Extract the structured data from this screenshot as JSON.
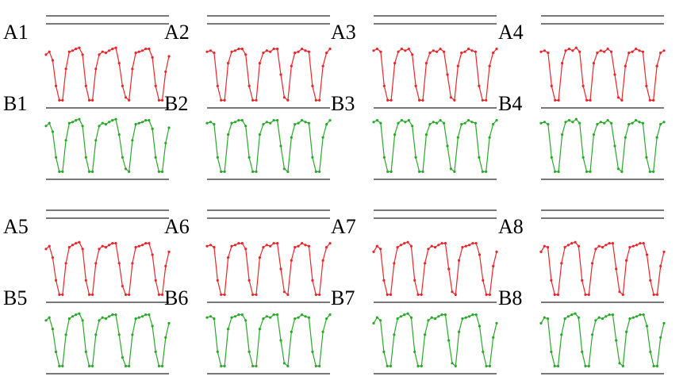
{
  "colors": {
    "red_series": "#e8262b",
    "green_series": "#2aa82a",
    "rule_line": "#777777"
  },
  "chart_data": [
    {
      "type": "line",
      "label": "A1",
      "series": [
        {
          "color": "red",
          "values": [
            0.85,
            0.9,
            0.75,
            0.3,
            0.05,
            0.05,
            0.6,
            0.9,
            0.92,
            0.95,
            0.97,
            0.85,
            0.3,
            0.05,
            0.05,
            0.6,
            0.85,
            0.9,
            0.88,
            0.92,
            0.95,
            0.97,
            0.7,
            0.3,
            0.1,
            0.05,
            0.6,
            0.88,
            0.9,
            0.92,
            0.95,
            0.95,
            0.8,
            0.3,
            0.05,
            0.05,
            0.55,
            0.82
          ]
        }
      ]
    },
    {
      "type": "line",
      "label": "A2",
      "series": [
        {
          "color": "red",
          "values": [
            0.9,
            0.92,
            0.88,
            0.3,
            0.05,
            0.05,
            0.7,
            0.9,
            0.92,
            0.95,
            0.95,
            0.85,
            0.3,
            0.05,
            0.05,
            0.7,
            0.88,
            0.92,
            0.9,
            0.95,
            0.95,
            0.5,
            0.1,
            0.05,
            0.65,
            0.88,
            0.9,
            0.95,
            0.92,
            0.9,
            0.3,
            0.05,
            0.05,
            0.65,
            0.88,
            0.95
          ]
        }
      ]
    },
    {
      "type": "line",
      "label": "A3",
      "series": [
        {
          "color": "red",
          "values": [
            0.92,
            0.95,
            0.9,
            0.3,
            0.05,
            0.05,
            0.7,
            0.9,
            0.95,
            0.92,
            0.95,
            0.85,
            0.3,
            0.05,
            0.05,
            0.7,
            0.88,
            0.92,
            0.9,
            0.95,
            0.9,
            0.5,
            0.1,
            0.05,
            0.65,
            0.88,
            0.9,
            0.95,
            0.92,
            0.9,
            0.3,
            0.05,
            0.05,
            0.65,
            0.88,
            0.95
          ]
        }
      ]
    },
    {
      "type": "line",
      "label": "A4",
      "series": [
        {
          "color": "red",
          "values": [
            0.9,
            0.92,
            0.88,
            0.3,
            0.05,
            0.05,
            0.7,
            0.92,
            0.95,
            0.92,
            0.97,
            0.9,
            0.3,
            0.05,
            0.05,
            0.7,
            0.88,
            0.92,
            0.9,
            0.95,
            0.9,
            0.5,
            0.1,
            0.05,
            0.65,
            0.88,
            0.9,
            0.95,
            0.92,
            0.9,
            0.3,
            0.05,
            0.05,
            0.65,
            0.88,
            0.92
          ]
        }
      ]
    },
    {
      "type": "line",
      "label": "A5",
      "series": [
        {
          "color": "red",
          "values": [
            0.85,
            0.9,
            0.7,
            0.3,
            0.05,
            0.05,
            0.6,
            0.88,
            0.92,
            0.95,
            0.97,
            0.85,
            0.3,
            0.05,
            0.05,
            0.6,
            0.85,
            0.9,
            0.88,
            0.92,
            0.95,
            0.95,
            0.6,
            0.2,
            0.05,
            0.05,
            0.6,
            0.88,
            0.9,
            0.92,
            0.95,
            0.95,
            0.75,
            0.3,
            0.05,
            0.05,
            0.55,
            0.8
          ]
        }
      ]
    },
    {
      "type": "line",
      "label": "A6",
      "series": [
        {
          "color": "red",
          "values": [
            0.9,
            0.92,
            0.88,
            0.3,
            0.05,
            0.05,
            0.7,
            0.9,
            0.92,
            0.95,
            0.95,
            0.85,
            0.3,
            0.05,
            0.05,
            0.7,
            0.88,
            0.92,
            0.9,
            0.95,
            0.95,
            0.5,
            0.1,
            0.05,
            0.65,
            0.88,
            0.9,
            0.95,
            0.92,
            0.9,
            0.3,
            0.05,
            0.05,
            0.65,
            0.88,
            0.95
          ]
        }
      ]
    },
    {
      "type": "line",
      "label": "A7",
      "series": [
        {
          "color": "red",
          "values": [
            0.8,
            0.9,
            0.85,
            0.3,
            0.05,
            0.05,
            0.6,
            0.88,
            0.92,
            0.95,
            0.97,
            0.9,
            0.3,
            0.05,
            0.05,
            0.6,
            0.85,
            0.9,
            0.88,
            0.92,
            0.95,
            0.95,
            0.5,
            0.1,
            0.05,
            0.65,
            0.88,
            0.9,
            0.92,
            0.95,
            0.95,
            0.75,
            0.3,
            0.05,
            0.05,
            0.55,
            0.8
          ]
        }
      ]
    },
    {
      "type": "line",
      "label": "A8",
      "series": [
        {
          "color": "red",
          "values": [
            0.8,
            0.9,
            0.88,
            0.3,
            0.05,
            0.05,
            0.6,
            0.88,
            0.92,
            0.95,
            0.97,
            0.9,
            0.3,
            0.05,
            0.05,
            0.6,
            0.85,
            0.9,
            0.88,
            0.92,
            0.95,
            0.95,
            0.5,
            0.1,
            0.05,
            0.65,
            0.88,
            0.9,
            0.92,
            0.95,
            0.95,
            0.75,
            0.3,
            0.05,
            0.05,
            0.55,
            0.8
          ]
        }
      ]
    },
    {
      "type": "line",
      "label": "B1",
      "series": [
        {
          "color": "green",
          "values": [
            0.85,
            0.9,
            0.75,
            0.3,
            0.05,
            0.05,
            0.6,
            0.9,
            0.92,
            0.95,
            0.97,
            0.85,
            0.3,
            0.05,
            0.05,
            0.6,
            0.85,
            0.9,
            0.88,
            0.92,
            0.95,
            0.97,
            0.7,
            0.3,
            0.1,
            0.05,
            0.6,
            0.88,
            0.9,
            0.92,
            0.95,
            0.95,
            0.8,
            0.3,
            0.05,
            0.05,
            0.55,
            0.82
          ]
        }
      ]
    },
    {
      "type": "line",
      "label": "B2",
      "series": [
        {
          "color": "green",
          "values": [
            0.9,
            0.92,
            0.88,
            0.3,
            0.05,
            0.05,
            0.7,
            0.9,
            0.92,
            0.95,
            0.95,
            0.85,
            0.3,
            0.05,
            0.05,
            0.7,
            0.88,
            0.92,
            0.9,
            0.95,
            0.95,
            0.5,
            0.1,
            0.05,
            0.65,
            0.88,
            0.9,
            0.95,
            0.92,
            0.9,
            0.3,
            0.05,
            0.05,
            0.65,
            0.88,
            0.95
          ]
        }
      ]
    },
    {
      "type": "line",
      "label": "B3",
      "series": [
        {
          "color": "green",
          "values": [
            0.92,
            0.95,
            0.9,
            0.3,
            0.05,
            0.05,
            0.7,
            0.9,
            0.95,
            0.92,
            0.95,
            0.85,
            0.3,
            0.05,
            0.05,
            0.7,
            0.88,
            0.92,
            0.9,
            0.95,
            0.9,
            0.5,
            0.1,
            0.05,
            0.65,
            0.88,
            0.9,
            0.95,
            0.92,
            0.9,
            0.3,
            0.05,
            0.05,
            0.65,
            0.88,
            0.95
          ]
        }
      ]
    },
    {
      "type": "line",
      "label": "B4",
      "series": [
        {
          "color": "green",
          "values": [
            0.9,
            0.92,
            0.88,
            0.3,
            0.05,
            0.05,
            0.7,
            0.92,
            0.95,
            0.92,
            0.97,
            0.9,
            0.3,
            0.05,
            0.05,
            0.7,
            0.88,
            0.92,
            0.9,
            0.95,
            0.9,
            0.5,
            0.1,
            0.05,
            0.65,
            0.88,
            0.9,
            0.95,
            0.92,
            0.9,
            0.3,
            0.05,
            0.05,
            0.65,
            0.88,
            0.92
          ]
        }
      ]
    },
    {
      "type": "line",
      "label": "B5",
      "series": [
        {
          "color": "green",
          "values": [
            0.85,
            0.9,
            0.7,
            0.3,
            0.05,
            0.05,
            0.6,
            0.88,
            0.92,
            0.95,
            0.97,
            0.85,
            0.3,
            0.05,
            0.05,
            0.6,
            0.85,
            0.9,
            0.88,
            0.92,
            0.95,
            0.95,
            0.6,
            0.2,
            0.05,
            0.05,
            0.6,
            0.88,
            0.9,
            0.92,
            0.95,
            0.95,
            0.75,
            0.3,
            0.05,
            0.05,
            0.55,
            0.8
          ]
        }
      ]
    },
    {
      "type": "line",
      "label": "B6",
      "series": [
        {
          "color": "green",
          "values": [
            0.9,
            0.92,
            0.88,
            0.3,
            0.05,
            0.05,
            0.7,
            0.9,
            0.92,
            0.95,
            0.95,
            0.85,
            0.3,
            0.05,
            0.05,
            0.7,
            0.88,
            0.92,
            0.9,
            0.95,
            0.95,
            0.5,
            0.1,
            0.05,
            0.65,
            0.88,
            0.9,
            0.95,
            0.92,
            0.9,
            0.3,
            0.05,
            0.05,
            0.65,
            0.88,
            0.95
          ]
        }
      ]
    },
    {
      "type": "line",
      "label": "B7",
      "series": [
        {
          "color": "green",
          "values": [
            0.8,
            0.9,
            0.85,
            0.3,
            0.05,
            0.05,
            0.6,
            0.88,
            0.92,
            0.95,
            0.97,
            0.9,
            0.3,
            0.05,
            0.05,
            0.6,
            0.85,
            0.9,
            0.88,
            0.92,
            0.95,
            0.95,
            0.5,
            0.1,
            0.05,
            0.65,
            0.88,
            0.9,
            0.92,
            0.95,
            0.95,
            0.75,
            0.3,
            0.05,
            0.05,
            0.55,
            0.8
          ]
        }
      ]
    },
    {
      "type": "line",
      "label": "B8",
      "series": [
        {
          "color": "green",
          "values": [
            0.8,
            0.9,
            0.88,
            0.3,
            0.05,
            0.05,
            0.6,
            0.88,
            0.92,
            0.95,
            0.97,
            0.9,
            0.3,
            0.05,
            0.05,
            0.6,
            0.85,
            0.9,
            0.88,
            0.92,
            0.95,
            0.95,
            0.5,
            0.1,
            0.05,
            0.65,
            0.88,
            0.9,
            0.92,
            0.95,
            0.95,
            0.75,
            0.3,
            0.05,
            0.05,
            0.55,
            0.8
          ]
        }
      ]
    }
  ]
}
